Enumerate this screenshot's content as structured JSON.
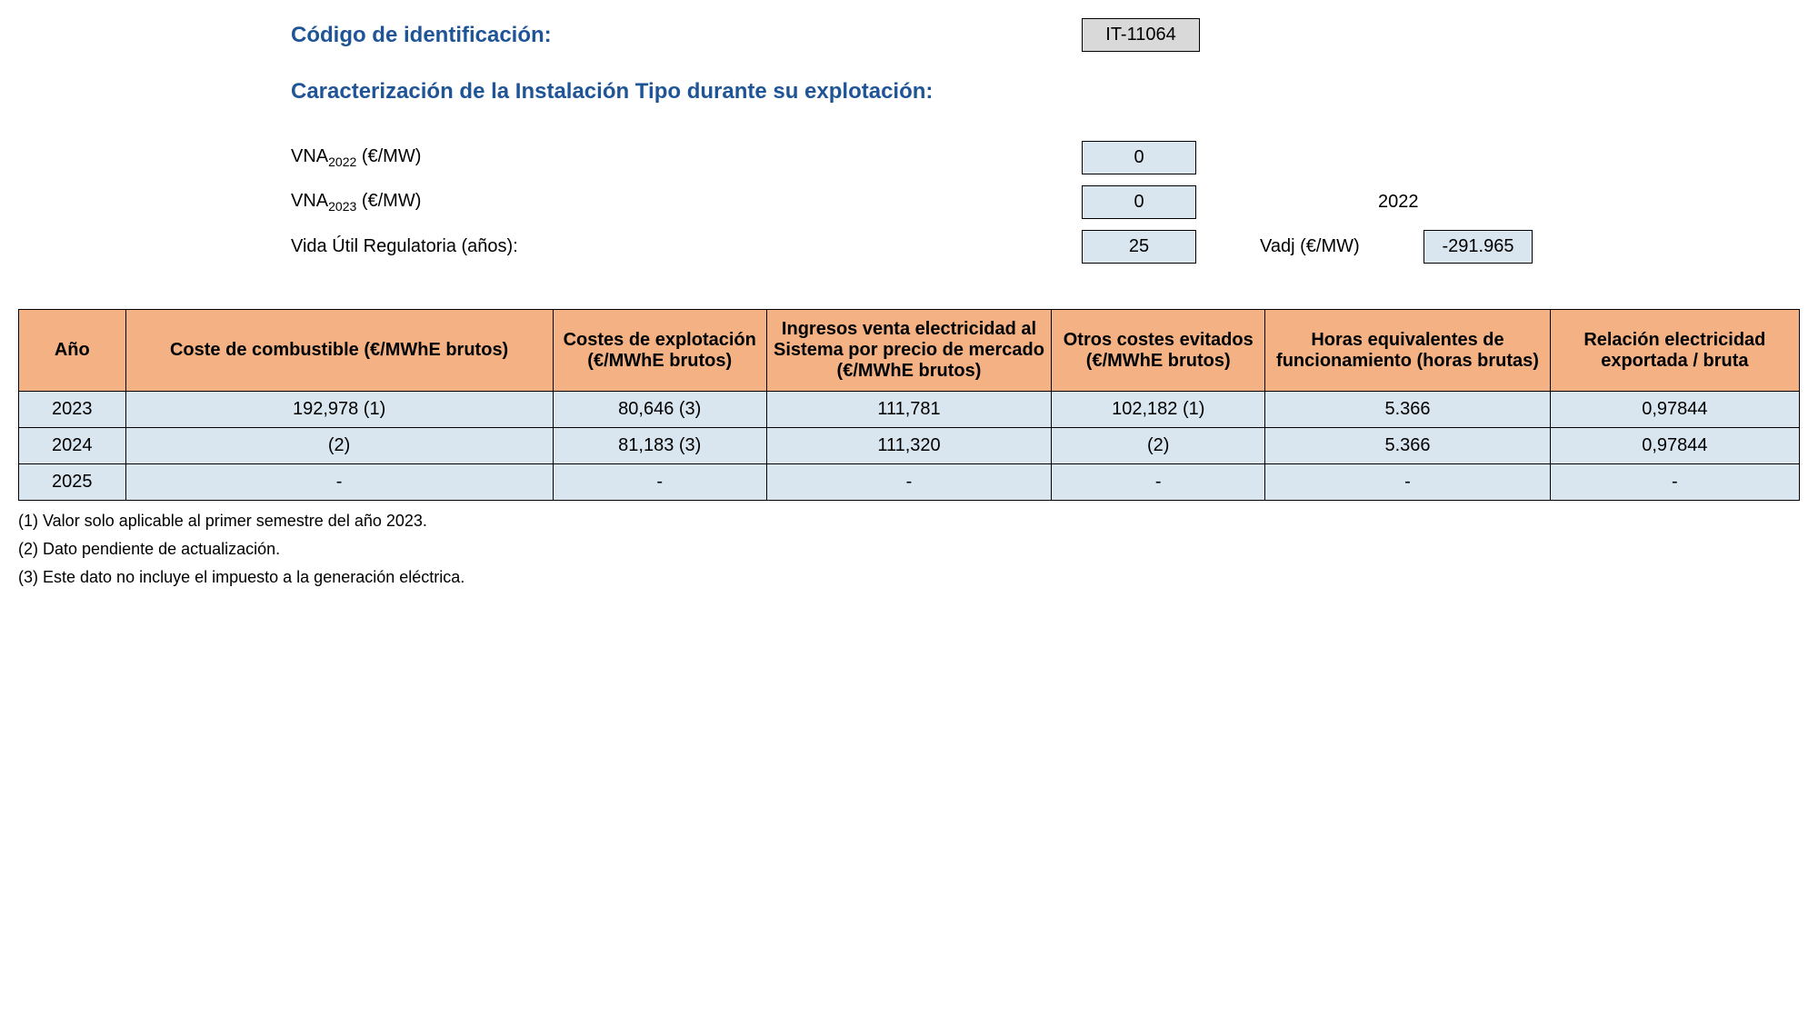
{
  "header": {
    "codigo_label": "Código de identificación:",
    "codigo_value": "IT-11064",
    "caract_label": "Caracterización de la Instalación Tipo durante su explotación:",
    "vna2022_label_prefix": "VNA",
    "vna2022_sub": "2022",
    "vna_unit": " (€/MW)",
    "vna2022_value": "0",
    "vna2023_label_prefix": "VNA",
    "vna2023_sub": "2023",
    "vna2023_value": "0",
    "year_side": "2022",
    "vida_label": "Vida Útil Regulatoria (años):",
    "vida_value": "25",
    "vadj_label": "Vadj (€/MW)",
    "vadj_value": "-291.965"
  },
  "table": {
    "columns": [
      "Año",
      "Coste de combustible (€/MWhE brutos)",
      "Costes de explotación (€/MWhE brutos)",
      "Ingresos venta electricidad al Sistema por precio de mercado (€/MWhE brutos)",
      "Otros costes evitados (€/MWhE brutos)",
      "Horas equivalentes de funcionamiento (horas brutas)",
      "Relación electricidad exportada / bruta"
    ],
    "col_widths": [
      "6%",
      "24%",
      "12%",
      "16%",
      "12%",
      "16%",
      "14%"
    ],
    "rows": [
      [
        "2023",
        "192,978 (1)",
        "80,646 (3)",
        "111,781",
        "102,182 (1)",
        "5.366",
        "0,97844"
      ],
      [
        "2024",
        "(2)",
        "81,183 (3)",
        "111,320",
        "(2)",
        "5.366",
        "0,97844"
      ],
      [
        "2025",
        "-",
        "-",
        "-",
        "-",
        "-",
        "-"
      ]
    ]
  },
  "footnotes": [
    "(1) Valor solo aplicable al primer semestre del año 2023.",
    "(2) Dato pendiente de actualización.",
    "(3) Este dato no incluye el impuesto a la generación eléctrica."
  ],
  "styling": {
    "header_bg": "#f4b183",
    "cell_bg": "#d9e6ef",
    "heading_color": "#1f5496",
    "grey_bg": "#d9d9d9"
  }
}
